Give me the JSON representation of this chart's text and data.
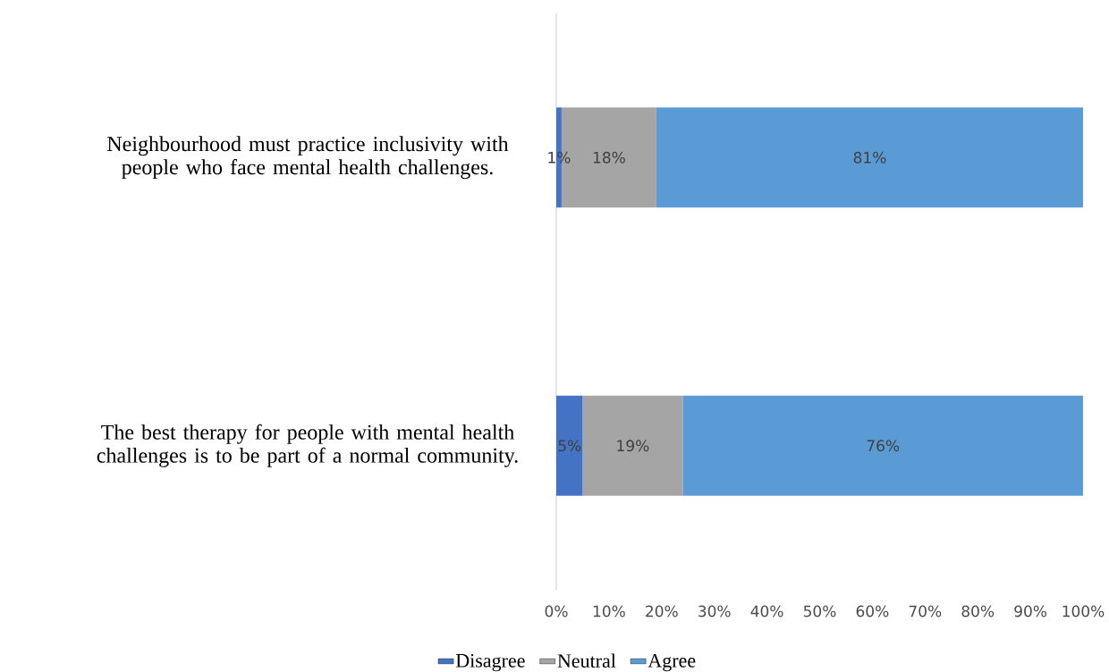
{
  "chart_data": {
    "type": "bar",
    "orientation": "horizontal",
    "stacked": true,
    "categories": [
      "Neighbourhood must practice inclusivity with people who face mental health challenges.",
      "The best therapy for people with mental health challenges is to be part of a normal community."
    ],
    "series": [
      {
        "name": "Disagree",
        "color": "#4472c4",
        "values": [
          1,
          5
        ],
        "value_labels": [
          "1%",
          "5%"
        ]
      },
      {
        "name": "Neutral",
        "color": "#a5a5a5",
        "values": [
          18,
          19
        ],
        "value_labels": [
          "18%",
          "19%"
        ]
      },
      {
        "name": "Agree",
        "color": "#5b9bd5",
        "values": [
          81,
          76
        ],
        "value_labels": [
          "81%",
          "76%"
        ]
      }
    ],
    "xlim": [
      0,
      100
    ],
    "xticks": [
      {
        "value": 0,
        "label": "0%"
      },
      {
        "value": 10,
        "label": "10%"
      },
      {
        "value": 20,
        "label": "20%"
      },
      {
        "value": 30,
        "label": "30%"
      },
      {
        "value": 40,
        "label": "40%"
      },
      {
        "value": 50,
        "label": "50%"
      },
      {
        "value": 60,
        "label": "60%"
      },
      {
        "value": 70,
        "label": "70%"
      },
      {
        "value": 80,
        "label": "80%"
      },
      {
        "value": 90,
        "label": "90%"
      },
      {
        "value": 100,
        "label": "100%"
      }
    ],
    "legend": "bottom",
    "grid": false
  }
}
